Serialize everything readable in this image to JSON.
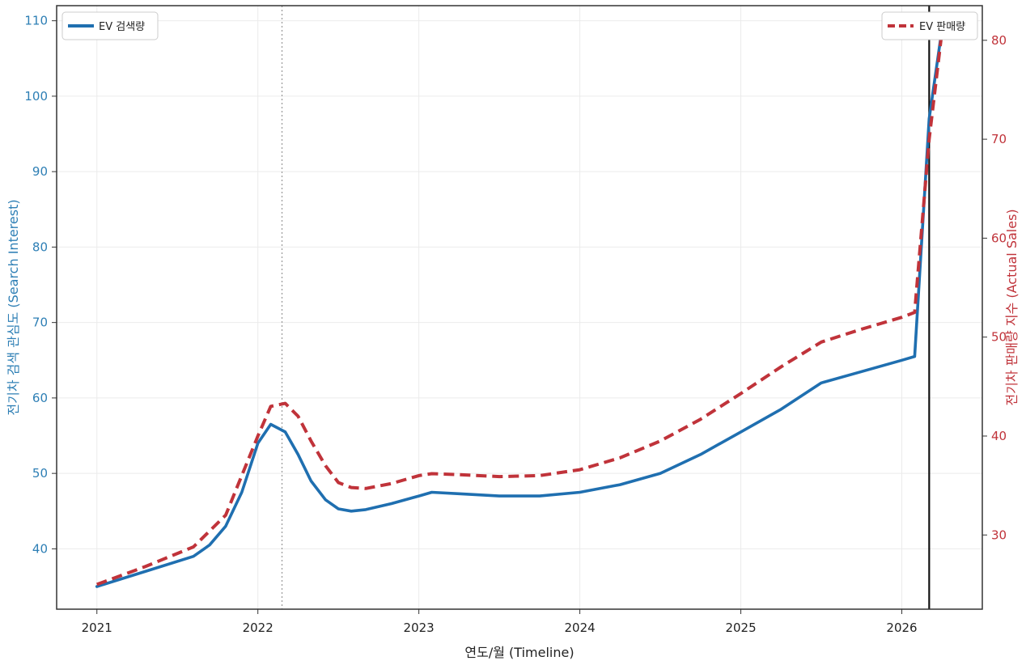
{
  "chart_data": {
    "type": "line",
    "xlabel": "연도/월 (Timeline)",
    "ylabel_left": "전기차 검색 관심도 (Search Interest)",
    "ylabel_right": "전기차 판매량 지수 (Actual Sales)",
    "x_ticks": [
      "2021",
      "2022",
      "2023",
      "2024",
      "2025",
      "2026"
    ],
    "xlim": [
      2020.75,
      2026.5
    ],
    "ylim_left": [
      32,
      112
    ],
    "ylim_right": [
      22.5,
      83.5
    ],
    "y_ticks_left": [
      "40",
      "50",
      "60",
      "70",
      "80",
      "90",
      "100",
      "110"
    ],
    "y_ticks_right": [
      "30",
      "40",
      "50",
      "60",
      "70",
      "80"
    ],
    "grid": true,
    "vlines": [
      {
        "x": 2022.15,
        "style": "dotted"
      },
      {
        "x": 2026.17,
        "style": "solid"
      }
    ],
    "series": [
      {
        "name": "EV 검색량",
        "axis": "left",
        "color": "#1f6fb0",
        "style": "solid",
        "legend_position": "upper-left",
        "x": [
          2021.0,
          2021.3,
          2021.6,
          2021.7,
          2021.8,
          2021.9,
          2022.0,
          2022.08,
          2022.17,
          2022.25,
          2022.33,
          2022.42,
          2022.5,
          2022.58,
          2022.67,
          2022.83,
          2023.0,
          2023.08,
          2023.25,
          2023.5,
          2023.75,
          2024.0,
          2024.25,
          2024.5,
          2024.75,
          2025.0,
          2025.25,
          2025.5,
          2025.75,
          2026.0,
          2026.08,
          2026.17,
          2026.25
        ],
        "values": [
          35,
          37,
          39,
          40.5,
          43,
          47.5,
          54,
          56.5,
          55.5,
          52.5,
          49,
          46.5,
          45.3,
          45,
          45.2,
          46,
          47,
          47.5,
          47.3,
          47,
          47,
          47.5,
          48.5,
          50,
          52.5,
          55.5,
          58.5,
          62,
          63.5,
          65,
          65.5,
          97,
          109
        ]
      },
      {
        "name": "EV 판매량",
        "axis": "right",
        "color": "#c0333a",
        "style": "dashed",
        "legend_position": "upper-right",
        "x": [
          2021.0,
          2021.3,
          2021.6,
          2021.8,
          2022.0,
          2022.08,
          2022.17,
          2022.25,
          2022.33,
          2022.42,
          2022.5,
          2022.58,
          2022.67,
          2022.83,
          2023.0,
          2023.08,
          2023.25,
          2023.5,
          2023.75,
          2024.0,
          2024.25,
          2024.5,
          2024.75,
          2025.0,
          2025.25,
          2025.5,
          2025.75,
          2026.0,
          2026.08,
          2026.17,
          2026.25
        ],
        "values": [
          25,
          26.8,
          28.8,
          32,
          40,
          43,
          43.3,
          42,
          39.5,
          37,
          35.3,
          34.8,
          34.7,
          35.2,
          36,
          36.2,
          36.1,
          35.9,
          36,
          36.6,
          37.8,
          39.5,
          41.7,
          44.3,
          47,
          49.5,
          50.8,
          52,
          52.5,
          70,
          81
        ]
      }
    ]
  }
}
